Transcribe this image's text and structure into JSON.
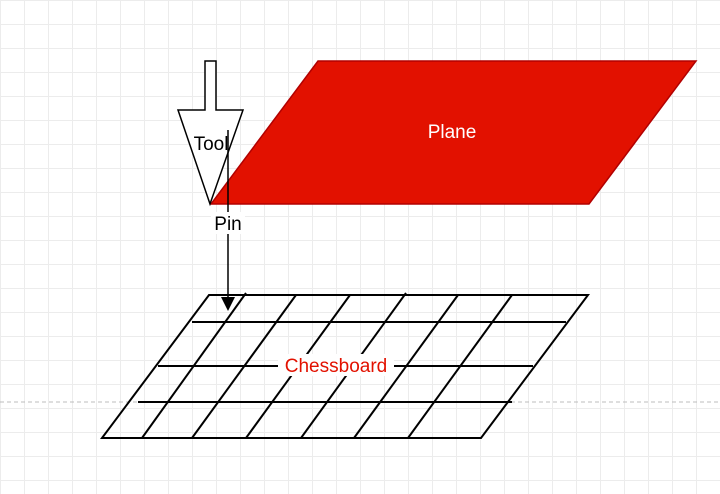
{
  "diagram": {
    "plane": {
      "label": "Plane",
      "fill": "#e21100",
      "stroke": "#b20000",
      "text_color": "#ffffff"
    },
    "tool": {
      "label": "Tool"
    },
    "pin": {
      "label": "Pin"
    },
    "chessboard": {
      "label": "Chessboard",
      "label_color": "#e21100"
    }
  }
}
